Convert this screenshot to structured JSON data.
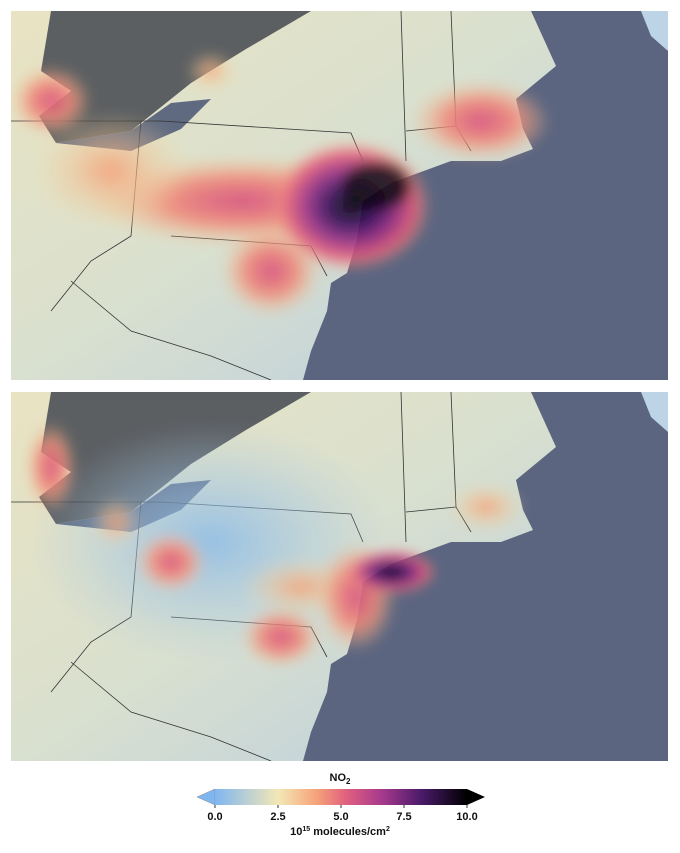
{
  "colorbar": {
    "title": "NO",
    "title_subscript": "2",
    "range": [
      0,
      10
    ],
    "ticks": [
      {
        "value": 0,
        "label": "0.0"
      },
      {
        "value": 2.5,
        "label": "2.5"
      },
      {
        "value": 5,
        "label": "5.0"
      },
      {
        "value": 7.5,
        "label": "7.5"
      },
      {
        "value": 10,
        "label": "10.0"
      }
    ],
    "unit_base": "10",
    "unit_exponent": "15",
    "unit_text": "molecules/cm",
    "unit_exponent2": "2"
  }
}
